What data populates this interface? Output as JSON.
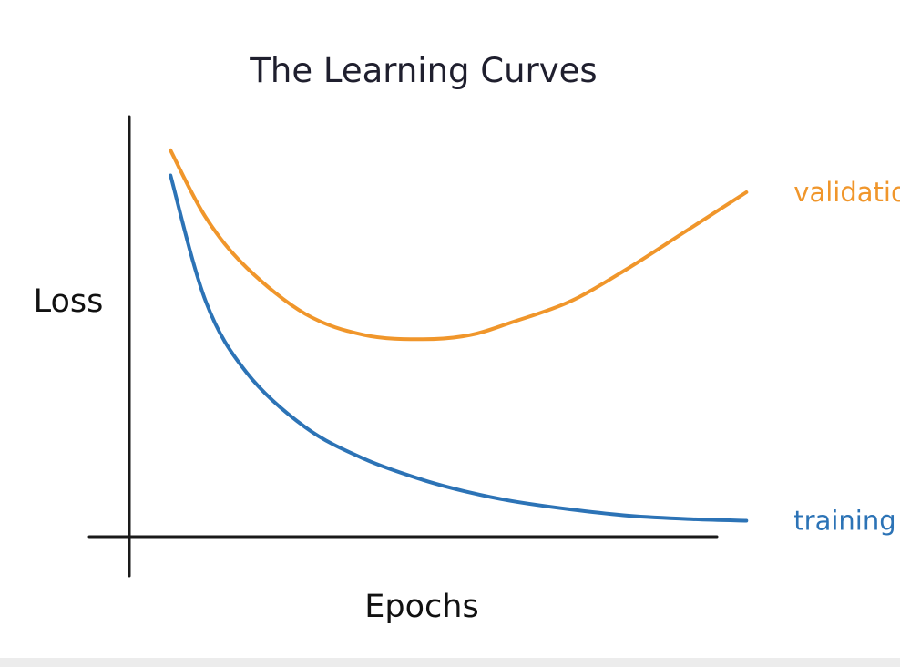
{
  "chart_data": {
    "type": "line",
    "title": "The Learning Curves",
    "xlabel": "Epochs",
    "ylabel": "Loss",
    "grid": false,
    "legend": "inline-right",
    "xlim": [
      0,
      10
    ],
    "ylim": [
      0,
      10
    ],
    "x": [
      0.7,
      1.3,
      2,
      3,
      4,
      5,
      5.8,
      6.5,
      7.5,
      8.5,
      9.5,
      10.5
    ],
    "series": [
      {
        "name": "validation",
        "color": "#f0962b",
        "values": [
          9.2,
          7.6,
          6.4,
          5.3,
          4.8,
          4.7,
          4.8,
          5.1,
          5.6,
          6.4,
          7.3,
          8.2
        ]
      },
      {
        "name": "training",
        "color": "#2c73b6",
        "values": [
          8.6,
          5.6,
          3.9,
          2.6,
          1.85,
          1.35,
          1.05,
          0.85,
          0.65,
          0.5,
          0.42,
          0.38
        ]
      }
    ]
  }
}
